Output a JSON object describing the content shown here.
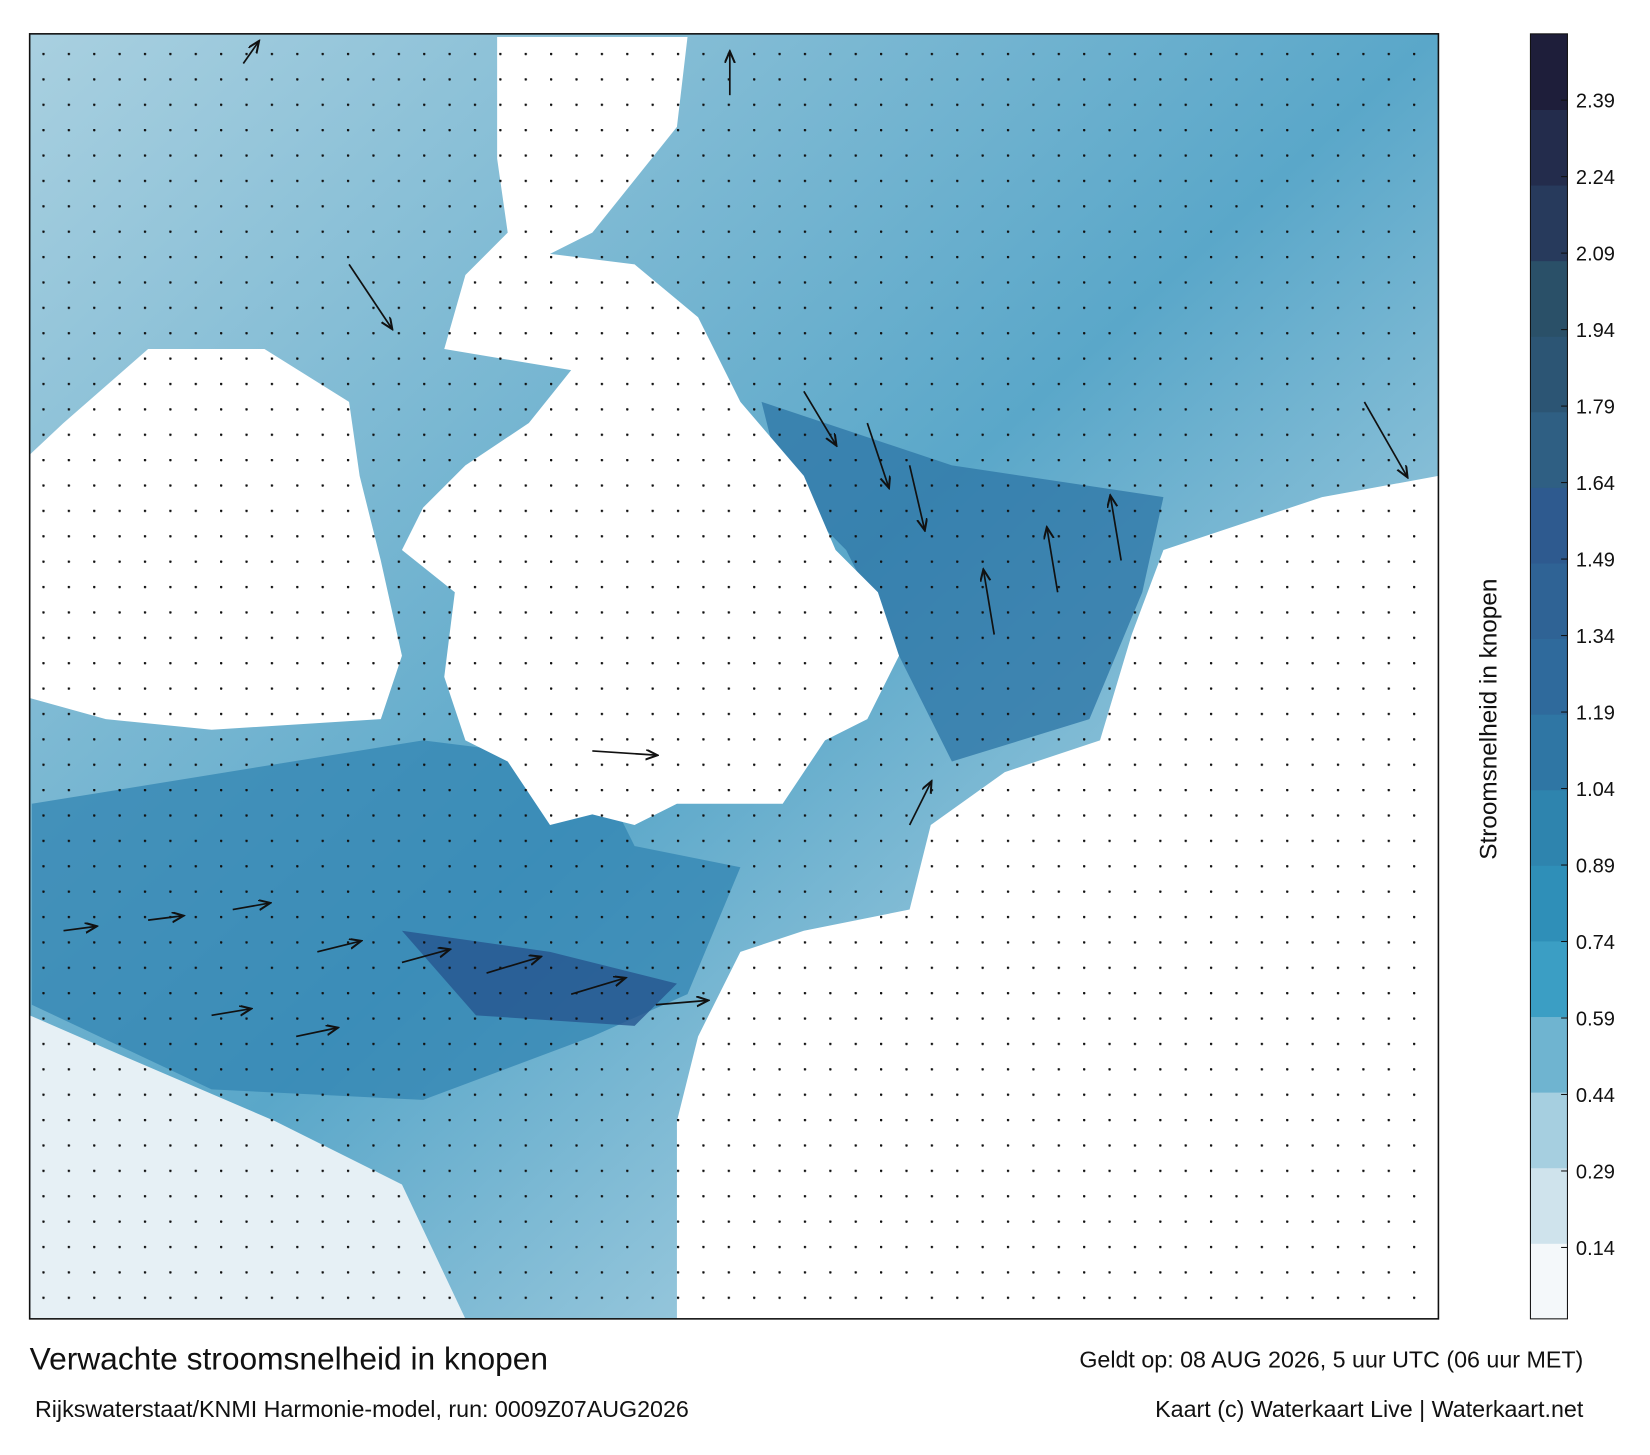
{
  "map": {
    "title": "Verwachte stroomsnelheid in knopen",
    "source": "Rijkswaterstaat/KNMI Harmonie-model, run: 0009Z07AUG2026",
    "valid": "Geldt op: 08 AUG 2026, 5 uur UTC (06 uur MET)",
    "credit": "Kaart (c) Waterkaart Live | Waterkaart.net"
  },
  "colorbar": {
    "label": "Stroomsnelheid in knopen",
    "lim": [
      0,
      2.52
    ],
    "ticks": [
      0.14,
      0.29,
      0.44,
      0.59,
      0.74,
      0.89,
      1.04,
      1.19,
      1.34,
      1.49,
      1.64,
      1.79,
      1.94,
      2.09,
      2.24,
      2.39
    ],
    "colors": [
      "#f4f8fa",
      "#cfe3ec",
      "#a6cfe0",
      "#6fb4d0",
      "#3b9ec4",
      "#2f8fb8",
      "#2e84ae",
      "#2f76a4",
      "#2f6a9c",
      "#2f6395",
      "#2e5a8f",
      "#2f5f83",
      "#2c5574",
      "#2a5068",
      "#273a5c",
      "#232c4c",
      "#1e1e3a"
    ]
  }
}
